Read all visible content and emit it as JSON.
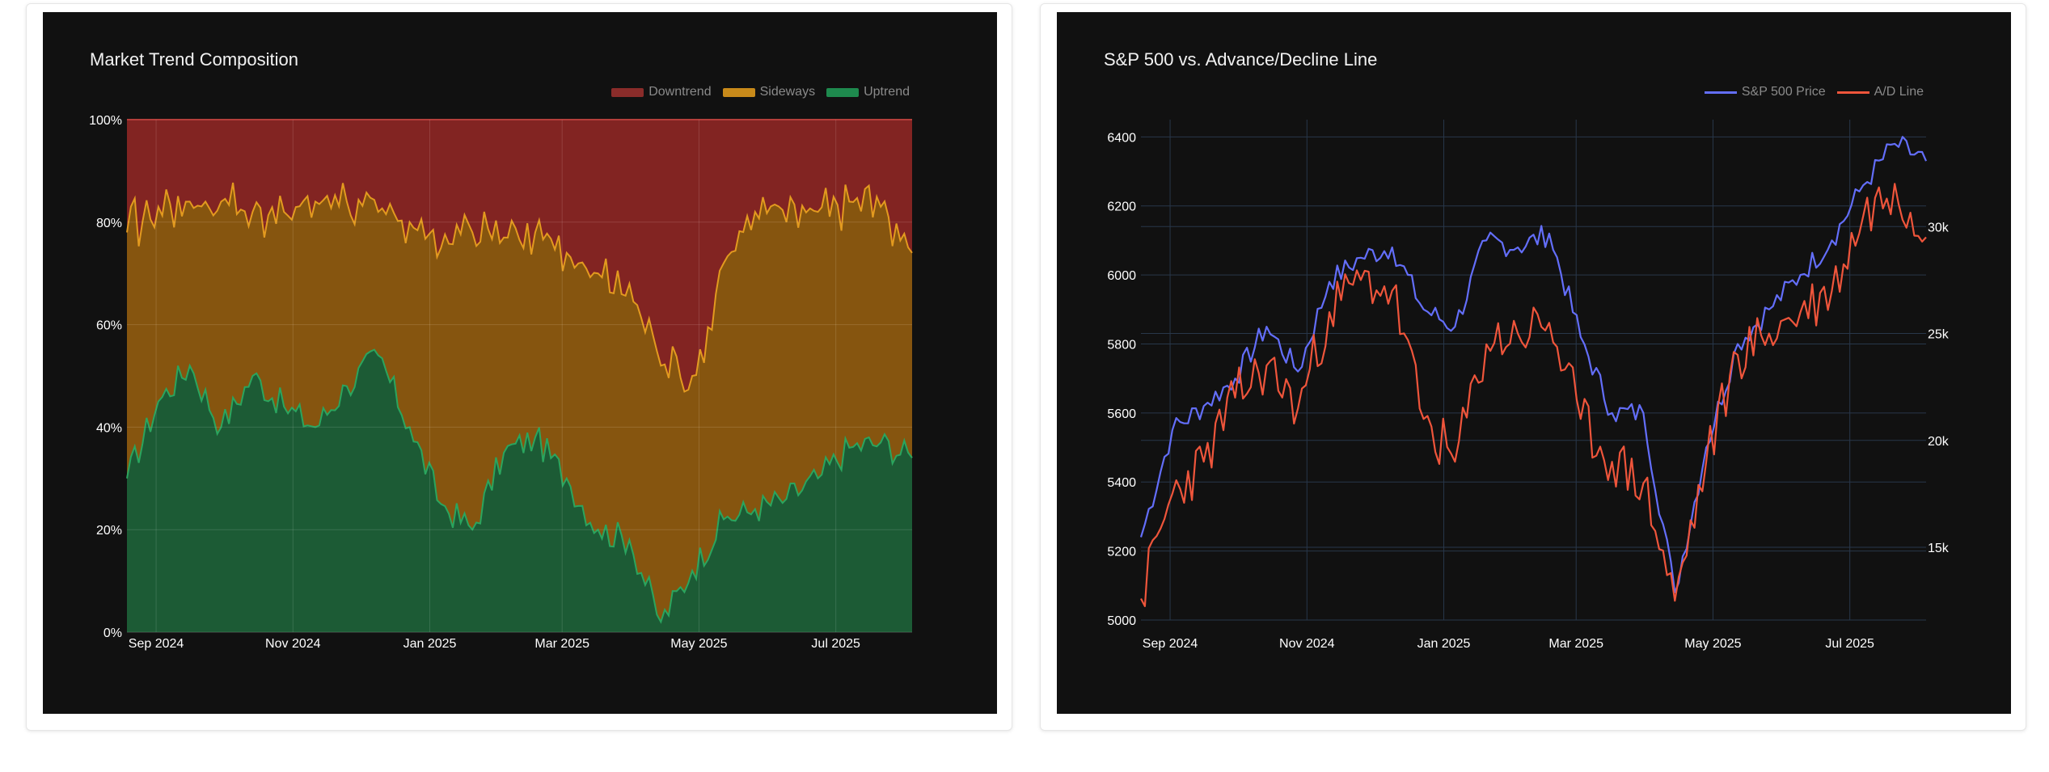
{
  "charts": {
    "left": {
      "title": "Market Trend Composition",
      "legend": [
        {
          "label": "Downtrend",
          "color": "#8a2c2a"
        },
        {
          "label": "Sideways",
          "color": "#c88a1a"
        },
        {
          "label": "Uptrend",
          "color": "#1e8a4e"
        }
      ]
    },
    "right": {
      "title": "S&P 500 vs. Advance/Decline Line",
      "legend": [
        {
          "label": "S&P 500 Price",
          "color": "#636efa"
        },
        {
          "label": "A/D Line",
          "color": "#ef553b"
        }
      ]
    }
  },
  "chart_data": [
    {
      "type": "area",
      "stacked": true,
      "normalized": true,
      "title": "Market Trend Composition",
      "x_ticks": [
        "Sep 2024",
        "Nov 2024",
        "Jan 2025",
        "Mar 2025",
        "May 2025",
        "Jul 2025"
      ],
      "y_ticks": [
        "0%",
        "20%",
        "40%",
        "60%",
        "80%",
        "100%"
      ],
      "ylim": [
        0,
        100
      ],
      "grid": true,
      "legend_position": "top-right",
      "x": [
        "2024-08-19",
        "2024-09-02",
        "2024-09-16",
        "2024-09-30",
        "2024-10-14",
        "2024-10-28",
        "2024-11-11",
        "2024-11-25",
        "2024-12-09",
        "2024-12-23",
        "2025-01-06",
        "2025-01-20",
        "2025-02-03",
        "2025-02-17",
        "2025-03-03",
        "2025-03-17",
        "2025-03-31",
        "2025-04-14",
        "2025-04-28",
        "2025-05-12",
        "2025-05-26",
        "2025-06-09",
        "2025-06-23",
        "2025-07-07",
        "2025-07-21",
        "2025-08-04"
      ],
      "series": [
        {
          "name": "Uptrend",
          "color": "#1e8a4e",
          "values": [
            30,
            45,
            52,
            40,
            50,
            44,
            40,
            48,
            54,
            40,
            25,
            20,
            35,
            38,
            30,
            20,
            18,
            2,
            12,
            22,
            24,
            26,
            30,
            36,
            37,
            34
          ]
        },
        {
          "name": "Sideways",
          "color": "#c88a1a",
          "values": [
            48,
            38,
            32,
            44,
            32,
            38,
            44,
            36,
            28,
            40,
            50,
            58,
            42,
            40,
            44,
            50,
            50,
            50,
            38,
            50,
            58,
            54,
            52,
            48,
            46,
            40
          ]
        },
        {
          "name": "Downtrend",
          "color": "#8a2c2a",
          "values": [
            22,
            17,
            16,
            16,
            18,
            18,
            16,
            16,
            18,
            20,
            25,
            22,
            23,
            22,
            26,
            30,
            32,
            48,
            50,
            28,
            18,
            20,
            18,
            16,
            17,
            26
          ]
        }
      ]
    },
    {
      "type": "line",
      "title": "S&P 500 vs. Advance/Decline Line",
      "x_ticks": [
        "Sep 2024",
        "Nov 2024",
        "Jan 2025",
        "Mar 2025",
        "May 2025",
        "Jul 2025"
      ],
      "y_ticks_left": [
        "5000",
        "5200",
        "5400",
        "5600",
        "5800",
        "6000",
        "6200",
        "6400"
      ],
      "y_ticks_right": [
        "15k",
        "20k",
        "25k",
        "30k"
      ],
      "ylim_left": [
        5000,
        6450
      ],
      "ylim_right": [
        11600,
        35000
      ],
      "grid": true,
      "legend_position": "top-right",
      "x": [
        "2024-08-19",
        "2024-09-02",
        "2024-09-16",
        "2024-09-30",
        "2024-10-14",
        "2024-10-28",
        "2024-11-11",
        "2024-11-25",
        "2024-12-09",
        "2024-12-23",
        "2025-01-06",
        "2025-01-20",
        "2025-02-03",
        "2025-02-17",
        "2025-03-03",
        "2025-03-17",
        "2025-03-31",
        "2025-04-14",
        "2025-04-28",
        "2025-05-12",
        "2025-05-26",
        "2025-06-09",
        "2025-06-23",
        "2025-07-07",
        "2025-07-21",
        "2025-08-04"
      ],
      "series": [
        {
          "name": "S&P 500 Price",
          "axis": "left",
          "color": "#636efa",
          "values": [
            5240,
            5550,
            5620,
            5700,
            5850,
            5720,
            5980,
            6050,
            6080,
            5900,
            5850,
            6100,
            6080,
            6120,
            5820,
            5600,
            5600,
            5080,
            5500,
            5800,
            5900,
            6000,
            6100,
            6260,
            6380,
            6330
          ]
        },
        {
          "name": "A/D Line",
          "axis": "right",
          "color": "#ef553b",
          "values": [
            12600,
            17500,
            19000,
            22000,
            23500,
            21500,
            26000,
            27500,
            27000,
            21000,
            19000,
            24500,
            25000,
            25500,
            21000,
            19000,
            18000,
            12500,
            19000,
            24000,
            25000,
            26000,
            27000,
            30500,
            32000,
            29500
          ]
        }
      ]
    }
  ]
}
